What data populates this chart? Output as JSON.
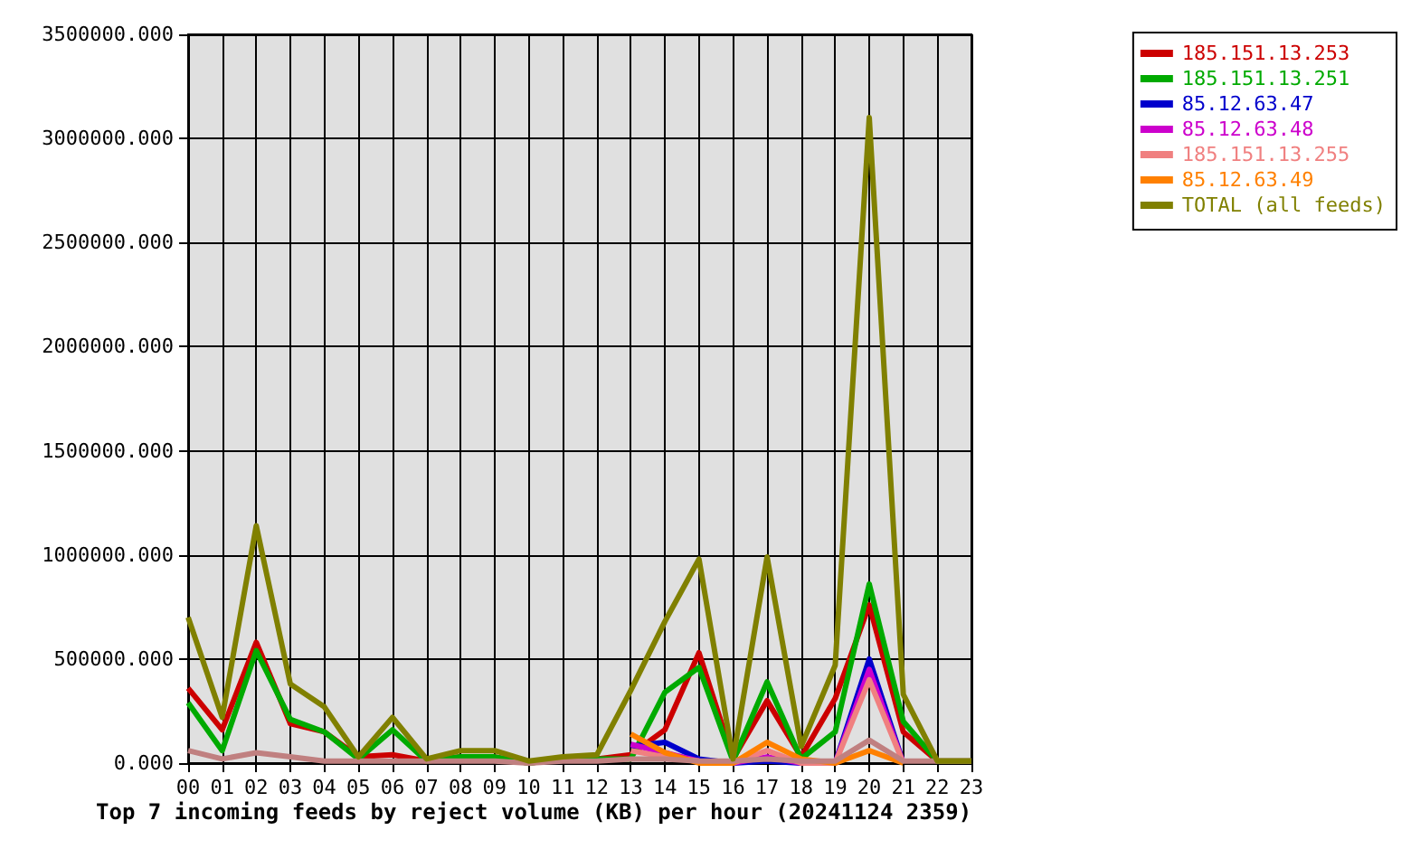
{
  "chart_data": {
    "type": "line",
    "title": "Top 7 incoming feeds by reject volume (KB) per hour (20241124 2359)",
    "categories": [
      "00",
      "01",
      "02",
      "03",
      "04",
      "05",
      "06",
      "07",
      "08",
      "09",
      "10",
      "11",
      "12",
      "13",
      "14",
      "15",
      "16",
      "17",
      "18",
      "19",
      "20",
      "21",
      "22",
      "23"
    ],
    "series": [
      {
        "name": "185.151.13.253",
        "color": "#cc0000",
        "values": [
          360000,
          160000,
          580000,
          190000,
          150000,
          30000,
          40000,
          10000,
          30000,
          30000,
          0,
          20000,
          20000,
          40000,
          160000,
          530000,
          20000,
          300000,
          30000,
          310000,
          760000,
          150000,
          10000,
          10000
        ]
      },
      {
        "name": "185.151.13.251",
        "color": "#00aa00",
        "values": [
          290000,
          60000,
          540000,
          210000,
          150000,
          20000,
          160000,
          10000,
          30000,
          30000,
          0,
          20000,
          20000,
          20000,
          340000,
          460000,
          10000,
          390000,
          20000,
          150000,
          860000,
          200000,
          10000,
          10000
        ]
      },
      {
        "name": "85.12.63.47",
        "color": "#0000cc",
        "values": [
          null,
          null,
          null,
          null,
          null,
          null,
          null,
          null,
          null,
          null,
          null,
          null,
          null,
          80000,
          100000,
          20000,
          0,
          10000,
          0,
          0,
          500000,
          0,
          null,
          null
        ]
      },
      {
        "name": "85.12.63.48",
        "color": "#cc00cc",
        "values": [
          null,
          null,
          null,
          null,
          null,
          null,
          null,
          null,
          null,
          null,
          null,
          null,
          null,
          90000,
          50000,
          10000,
          0,
          30000,
          0,
          0,
          450000,
          0,
          null,
          null
        ]
      },
      {
        "name": "185.151.13.255",
        "color": "#f08080",
        "values": [
          null,
          null,
          null,
          null,
          null,
          null,
          null,
          null,
          null,
          null,
          null,
          null,
          null,
          60000,
          30000,
          10000,
          0,
          60000,
          0,
          0,
          400000,
          0,
          null,
          null
        ]
      },
      {
        "name": "85.12.63.49",
        "color": "#ff8000",
        "values": [
          null,
          null,
          null,
          null,
          null,
          null,
          null,
          null,
          null,
          null,
          null,
          null,
          null,
          140000,
          50000,
          0,
          0,
          100000,
          20000,
          0,
          60000,
          0,
          null,
          null
        ]
      },
      {
        "color": "#c08080",
        "values": [
          60000,
          20000,
          50000,
          30000,
          10000,
          10000,
          10000,
          10000,
          10000,
          10000,
          0,
          10000,
          10000,
          20000,
          20000,
          10000,
          10000,
          20000,
          10000,
          10000,
          110000,
          10000,
          10000,
          10000
        ]
      },
      {
        "name": "TOTAL (all feeds)",
        "color": "#808000",
        "values": [
          700000,
          220000,
          1140000,
          380000,
          270000,
          30000,
          220000,
          20000,
          60000,
          60000,
          10000,
          30000,
          40000,
          350000,
          680000,
          980000,
          20000,
          990000,
          80000,
          470000,
          3100000,
          330000,
          10000,
          10000
        ]
      }
    ],
    "ylim": [
      0,
      3500000
    ],
    "yticks": [
      {
        "value": 0,
        "label": "0.000"
      },
      {
        "value": 500000,
        "label": "500000.000"
      },
      {
        "value": 1000000,
        "label": "1000000.000"
      },
      {
        "value": 1500000,
        "label": "1500000.000"
      },
      {
        "value": 2000000,
        "label": "2000000.000"
      },
      {
        "value": 2500000,
        "label": "2500000.000"
      },
      {
        "value": 3000000,
        "label": "3000000.000"
      },
      {
        "value": 3500000,
        "label": "3500000.000"
      }
    ],
    "grid": true,
    "legend": "top right"
  }
}
